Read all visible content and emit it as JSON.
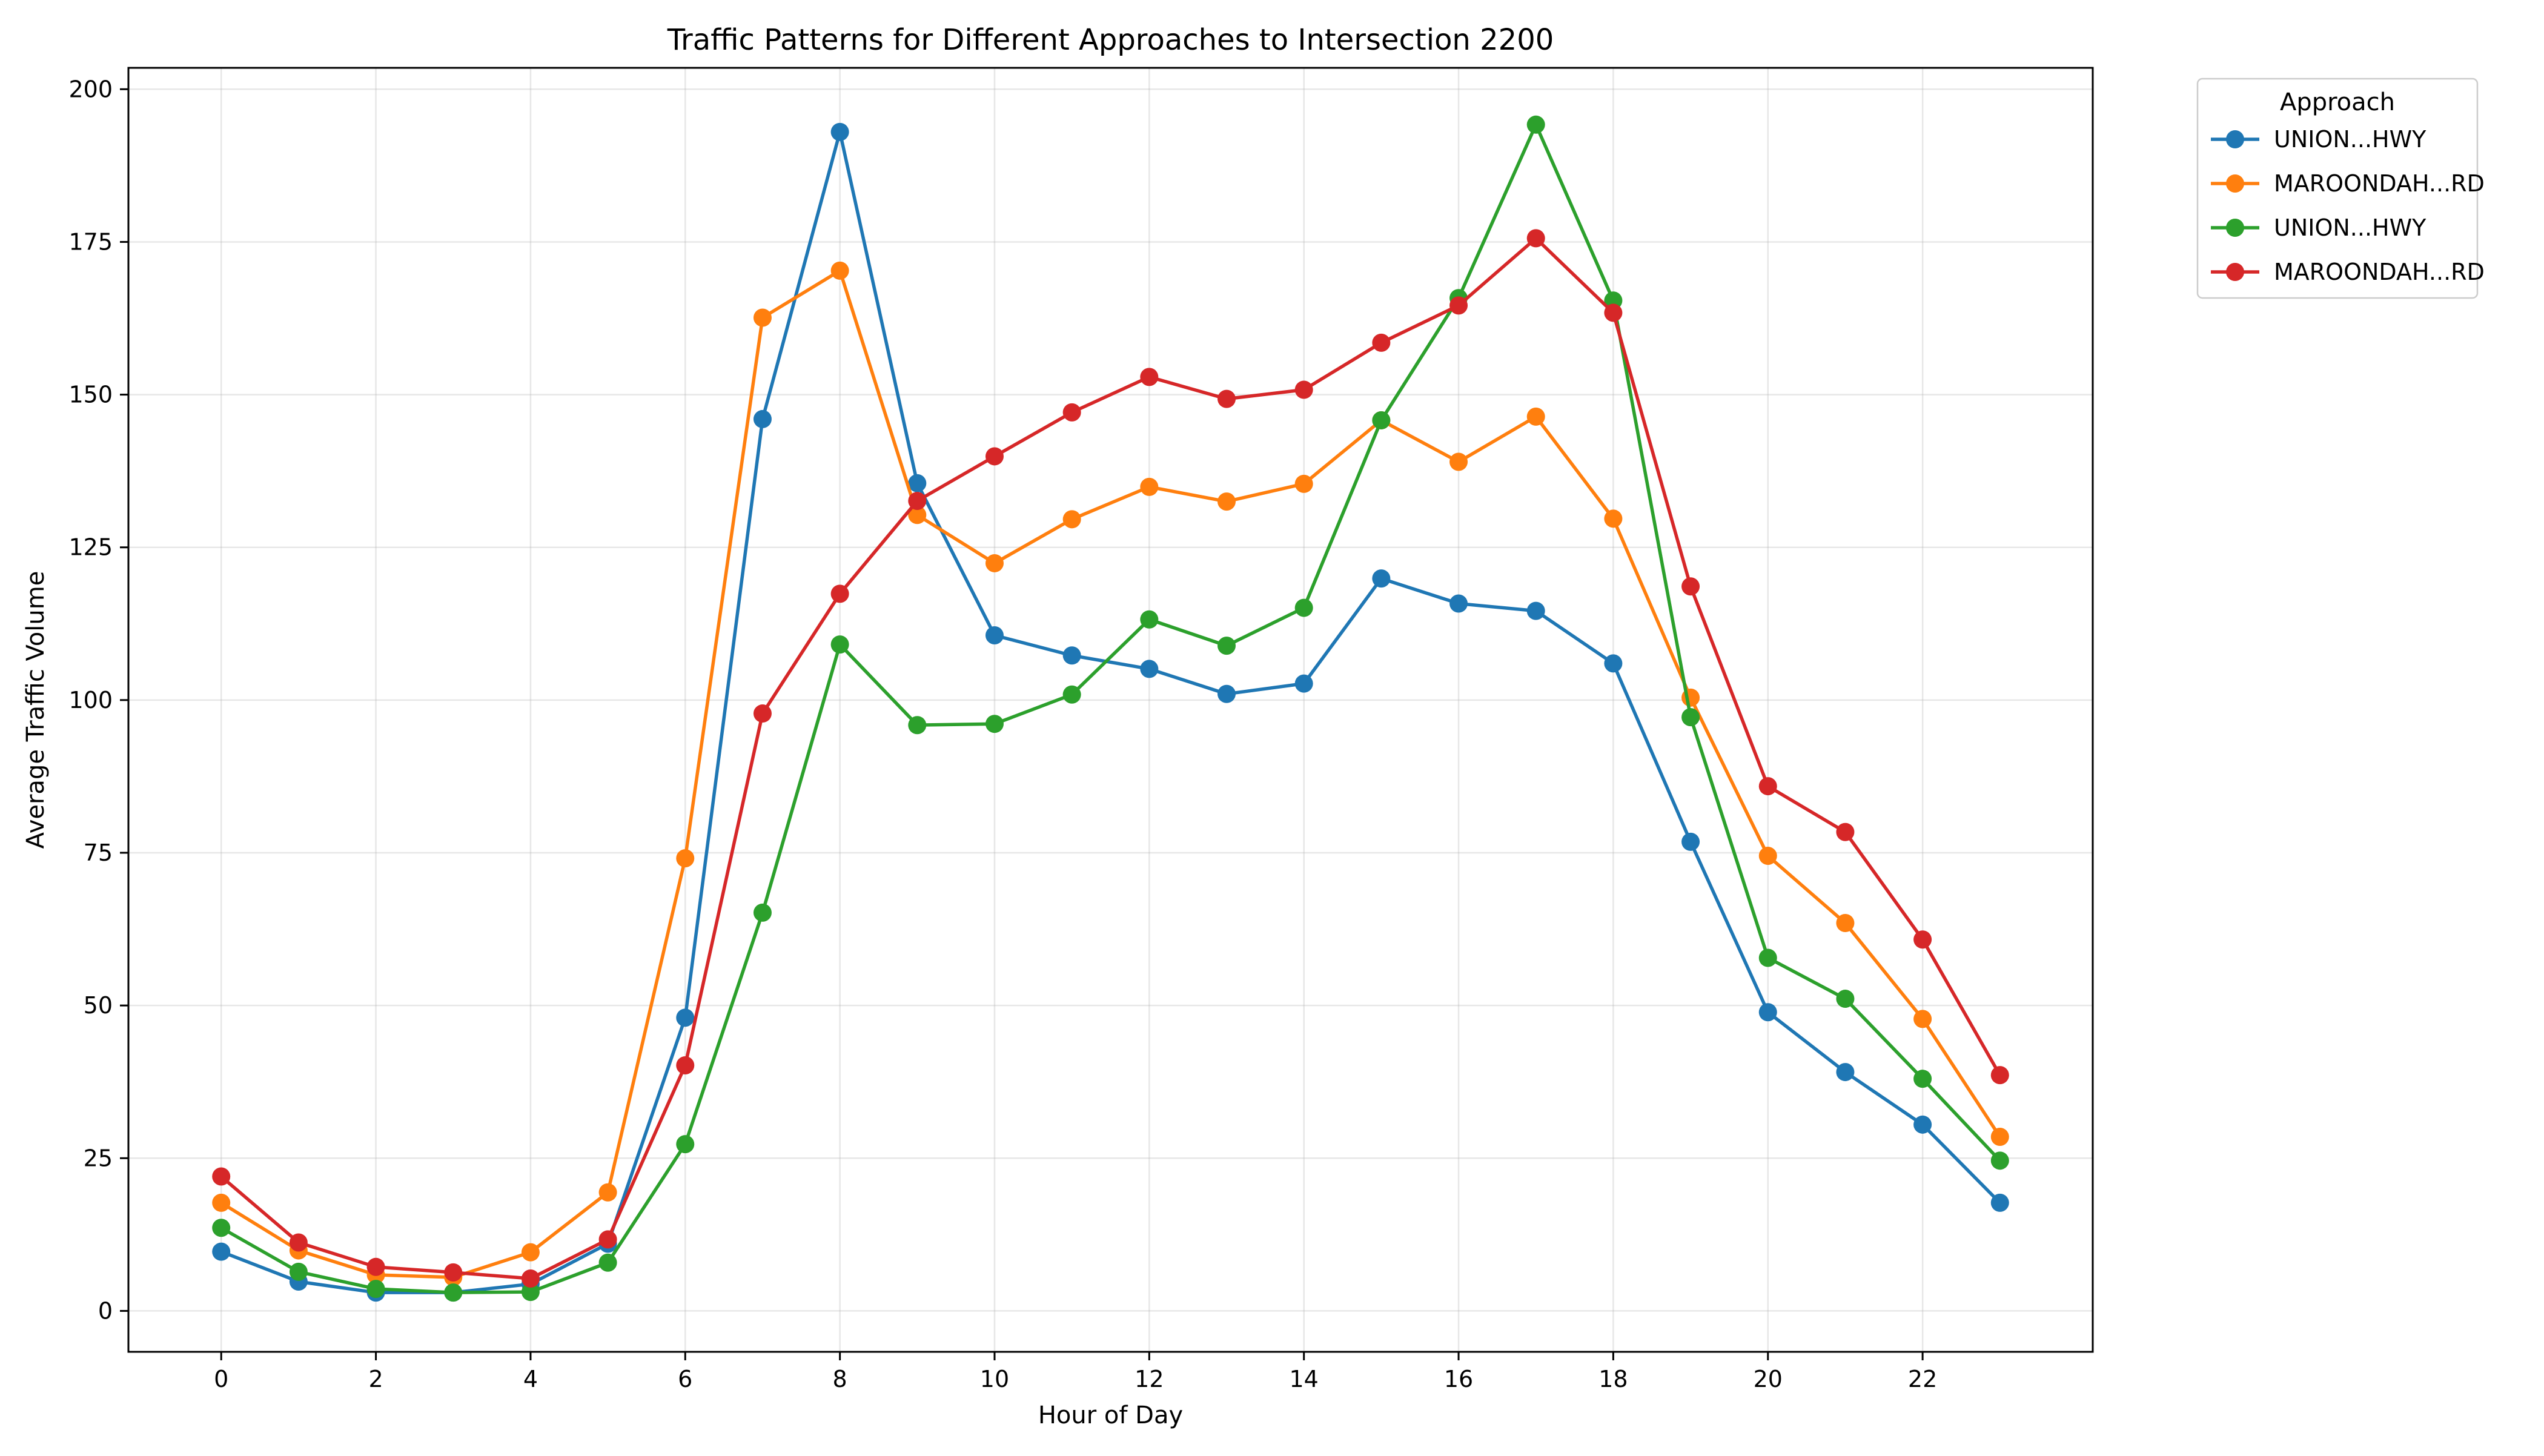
{
  "chart_data": {
    "type": "line",
    "title": "Traffic Patterns for Different Approaches to Intersection 2200",
    "xlabel": "Hour of Day",
    "ylabel": "Average Traffic Volume",
    "xlim": [
      -1.2,
      24.2
    ],
    "ylim": [
      -6.7,
      203.5
    ],
    "xticks": [
      0,
      2,
      4,
      6,
      8,
      10,
      12,
      14,
      16,
      18,
      20,
      22
    ],
    "yticks": [
      0,
      25,
      50,
      75,
      100,
      125,
      150,
      175,
      200
    ],
    "grid": true,
    "legend": {
      "title": "Approach",
      "placement": "outside-top-right"
    },
    "x": [
      0,
      1,
      2,
      3,
      4,
      5,
      6,
      7,
      8,
      9,
      10,
      11,
      12,
      13,
      14,
      15,
      16,
      17,
      18,
      19,
      20,
      21,
      22,
      23
    ],
    "series": [
      {
        "name": "UNION...HWY",
        "color": "#1f77b4",
        "values": [
          9.7,
          4.8,
          3.0,
          3.0,
          4.4,
          11.0,
          48.0,
          146.0,
          193.0,
          135.5,
          110.6,
          107.3,
          105.1,
          101.0,
          102.7,
          119.9,
          115.8,
          114.6,
          106.0,
          76.8,
          48.9,
          39.1,
          30.5,
          17.7
        ]
      },
      {
        "name": "MAROONDAH...RD",
        "color": "#ff7f0e",
        "values": [
          17.7,
          9.9,
          5.9,
          5.5,
          9.6,
          19.4,
          74.1,
          162.6,
          170.3,
          130.3,
          122.4,
          129.6,
          134.9,
          132.5,
          135.4,
          145.8,
          139.0,
          146.4,
          129.7,
          100.4,
          74.5,
          63.5,
          47.8,
          28.5
        ]
      },
      {
        "name": "UNION...HWY",
        "color": "#2ca02c",
        "values": [
          13.6,
          6.4,
          3.6,
          3.0,
          3.1,
          7.9,
          27.3,
          65.2,
          109.1,
          95.9,
          96.1,
          100.9,
          113.2,
          108.9,
          115.1,
          145.8,
          165.8,
          194.2,
          165.4,
          97.2,
          57.8,
          51.1,
          38.0,
          24.6
        ]
      },
      {
        "name": "MAROONDAH...RD",
        "color": "#d62728",
        "values": [
          22.0,
          11.2,
          7.2,
          6.3,
          5.3,
          11.7,
          40.2,
          97.8,
          117.4,
          132.6,
          139.9,
          147.1,
          152.9,
          149.3,
          150.8,
          158.5,
          164.6,
          175.6,
          163.4,
          118.6,
          85.9,
          78.4,
          60.8,
          38.6
        ]
      }
    ]
  }
}
